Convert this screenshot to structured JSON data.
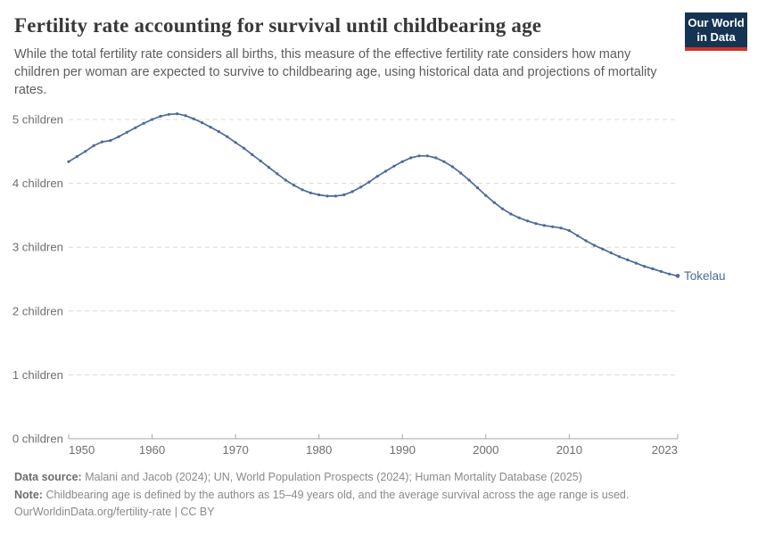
{
  "header": {
    "title": "Fertility rate accounting for survival until childbearing age",
    "subtitle": "While the total fertility rate considers all births, this measure of the effective fertility rate considers how many children per woman are expected to survive to childbearing age, using historical data and projections of mortality rates.",
    "logo_line1": "Our World",
    "logo_line2": "in Data"
  },
  "chart_data": {
    "type": "line",
    "title": "Fertility rate accounting for survival until childbearing age",
    "xlabel": "",
    "ylabel": "",
    "xlim": [
      1950,
      2023
    ],
    "ylim": [
      0,
      5.2
    ],
    "grid": "horizontal-dashed",
    "legend_position": "end-of-line",
    "x_ticks": [
      1950,
      1960,
      1970,
      1980,
      1990,
      2000,
      2010,
      2023
    ],
    "y_ticks": [
      {
        "value": 0,
        "label": "0 children"
      },
      {
        "value": 1,
        "label": "1 children"
      },
      {
        "value": 2,
        "label": "2 children"
      },
      {
        "value": 3,
        "label": "3 children"
      },
      {
        "value": 4,
        "label": "4 children"
      },
      {
        "value": 5,
        "label": "5 children"
      }
    ],
    "series": [
      {
        "name": "Tokelau",
        "color": "#4c6a9c",
        "x": [
          1950,
          1951,
          1952,
          1953,
          1954,
          1955,
          1956,
          1957,
          1958,
          1959,
          1960,
          1961,
          1962,
          1963,
          1964,
          1965,
          1966,
          1967,
          1968,
          1969,
          1970,
          1971,
          1972,
          1973,
          1974,
          1975,
          1976,
          1977,
          1978,
          1979,
          1980,
          1981,
          1982,
          1983,
          1984,
          1985,
          1986,
          1987,
          1988,
          1989,
          1990,
          1991,
          1992,
          1993,
          1994,
          1995,
          1996,
          1997,
          1998,
          1999,
          2000,
          2001,
          2002,
          2003,
          2004,
          2005,
          2006,
          2007,
          2008,
          2009,
          2010,
          2011,
          2012,
          2013,
          2014,
          2015,
          2016,
          2017,
          2018,
          2019,
          2020,
          2021,
          2022,
          2023
        ],
        "values": [
          4.34,
          4.42,
          4.5,
          4.59,
          4.65,
          4.67,
          4.73,
          4.8,
          4.87,
          4.94,
          5.0,
          5.05,
          5.08,
          5.09,
          5.06,
          5.01,
          4.95,
          4.88,
          4.81,
          4.73,
          4.64,
          4.55,
          4.45,
          4.35,
          4.25,
          4.15,
          4.05,
          3.97,
          3.9,
          3.85,
          3.82,
          3.8,
          3.8,
          3.82,
          3.87,
          3.94,
          4.02,
          4.11,
          4.19,
          4.27,
          4.34,
          4.4,
          4.43,
          4.43,
          4.4,
          4.34,
          4.26,
          4.16,
          4.05,
          3.93,
          3.81,
          3.7,
          3.6,
          3.52,
          3.46,
          3.41,
          3.37,
          3.34,
          3.32,
          3.3,
          3.26,
          3.18,
          3.1,
          3.03,
          2.97,
          2.91,
          2.85,
          2.8,
          2.75,
          2.7,
          2.66,
          2.62,
          2.58,
          2.55
        ]
      }
    ]
  },
  "footer": {
    "data_source_label": "Data source:",
    "data_source": "Malani and Jacob (2024); UN, World Population Prospects (2024); Human Mortality Database (2025)",
    "note_label": "Note:",
    "note": "Childbearing age is defined by the authors as 15–49 years old, and the average survival across the age range is used.",
    "url_line": "OurWorldinData.org/fertility-rate | CC BY"
  },
  "colors": {
    "line": "#4c6a9c",
    "grid": "#d9d9d9",
    "axis": "#a6a6a6",
    "tick_label": "#6f6f6f",
    "logo_bg": "#153454",
    "logo_accent": "#cf3228"
  }
}
